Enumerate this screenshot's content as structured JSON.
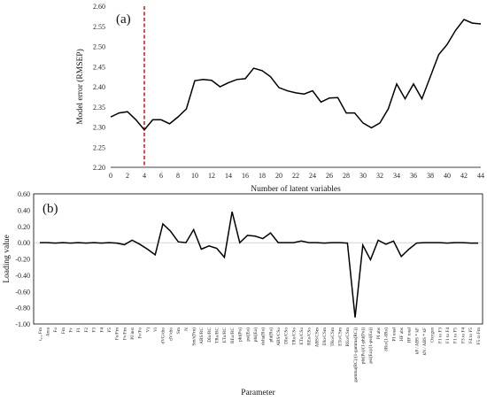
{
  "chart_data": [
    {
      "type": "line",
      "panel_label": "(a)",
      "xlabel": "Number of latent variables",
      "ylabel": "Model error (RMSEP)",
      "xlim": [
        0,
        44
      ],
      "ylim": [
        2.2,
        2.6
      ],
      "x_ticks": [
        0,
        2,
        4,
        6,
        8,
        10,
        12,
        14,
        16,
        18,
        20,
        22,
        24,
        26,
        28,
        30,
        32,
        34,
        36,
        38,
        40,
        42,
        44
      ],
      "y_ticks": [
        2.2,
        2.25,
        2.3,
        2.35,
        2.4,
        2.45,
        2.5,
        2.55,
        2.6
      ],
      "x_tick_labels": [
        "0",
        "2",
        "4",
        "6",
        "8",
        "10",
        "12",
        "14",
        "16",
        "18",
        "20",
        "22",
        "24",
        "26",
        "28",
        "30",
        "32",
        "34",
        "36",
        "38",
        "40",
        "42",
        "44"
      ],
      "y_tick_labels": [
        "2.20",
        "2.25",
        "2.30",
        "2.35",
        "2.40",
        "2.45",
        "2.50",
        "2.55",
        "2.60"
      ],
      "reference_line": {
        "x": 4,
        "color": "#cc0000",
        "style": "dashed"
      },
      "grid": false,
      "line_color": "#000000",
      "x": [
        0,
        1,
        2,
        3,
        4,
        5,
        6,
        7,
        8,
        9,
        10,
        11,
        12,
        13,
        14,
        15,
        16,
        17,
        18,
        19,
        20,
        21,
        22,
        23,
        24,
        25,
        26,
        27,
        28,
        29,
        30,
        31,
        32,
        33,
        34,
        35,
        36,
        37,
        38,
        39,
        40,
        41,
        42,
        43,
        44
      ],
      "y": [
        2.325,
        2.335,
        2.338,
        2.318,
        2.293,
        2.318,
        2.318,
        2.308,
        2.325,
        2.345,
        2.415,
        2.418,
        2.416,
        2.4,
        2.41,
        2.418,
        2.42,
        2.446,
        2.44,
        2.425,
        2.398,
        2.39,
        2.385,
        2.382,
        2.39,
        2.362,
        2.372,
        2.373,
        2.335,
        2.335,
        2.31,
        2.298,
        2.31,
        2.345,
        2.407,
        2.37,
        2.407,
        2.37,
        2.425,
        2.48,
        2.505,
        2.54,
        2.567,
        2.558,
        2.556
      ]
    },
    {
      "type": "line",
      "panel_label": "(b)",
      "xlabel": "Parameter",
      "ylabel": "Loading value",
      "ylim": [
        -1.0,
        0.6
      ],
      "y_ticks": [
        -1.0,
        -0.8,
        -0.6,
        -0.4,
        -0.2,
        0.0,
        0.2,
        0.4,
        0.6
      ],
      "y_tick_labels": [
        "-1.00",
        "-0.80",
        "-0.60",
        "-0.40",
        "-0.20",
        "0.00",
        "0.20",
        "0.40",
        "0.60"
      ],
      "grid": false,
      "line_color": "#000000",
      "categories": [
        "t₀.₂ Fm",
        "Area",
        "Fo",
        "Fm",
        "Fv",
        "F1",
        "F2",
        "F3",
        "F4",
        "F5",
        "Fo/Fm",
        "Fv/Fm",
        "PI inst",
        "Fv/Fo",
        "Vj",
        "Vi",
        "dVG/dto",
        "dV/dto",
        "Sm",
        "N",
        "Sm/t(Fm)",
        "ABS/RC",
        "DIo/RC",
        "TRo/RC",
        "ETo/RC",
        "REo/RC",
        "phi(Po)",
        "psi(Eo)",
        "phi(Eo)",
        "delta(Ro)",
        "phi(Ro)",
        "ABS/CSo",
        "DIo/CSo",
        "TRo/CSo",
        "ETo/CSo",
        "REo/CSo",
        "ABS/CSm",
        "DIo/CSm",
        "TRo/CSm",
        "ETo/CSm",
        "REo/CSm",
        "gamma(RC)/(1-gamma(RC))",
        "phi(Po)/(1-phi(Po))",
        "psi(Eo)/(1-psi(Eo))",
        "PI abs",
        "δRo/(1-δRo)",
        "PI total",
        "HF abs",
        "HF total",
        "kP / ABS * kF",
        "kN / ABS * kF",
        "Oxygen",
        "F1 to F3",
        "F1 to F4",
        "F1 to F5",
        "F3 to F4",
        "F4 to F5",
        "F5 to Fm"
      ],
      "values": [
        0.0,
        0.0,
        -0.005,
        0.0,
        -0.005,
        0.0,
        -0.005,
        0.0,
        -0.005,
        0.0,
        -0.005,
        -0.025,
        0.03,
        -0.02,
        -0.08,
        -0.15,
        0.23,
        0.14,
        0.01,
        0.0,
        0.16,
        -0.08,
        -0.04,
        -0.07,
        -0.18,
        0.38,
        0.0,
        0.09,
        0.08,
        0.05,
        0.12,
        0.0,
        0.0,
        0.0,
        0.02,
        0.0,
        0.0,
        -0.005,
        0.0,
        0.0,
        -0.005,
        -0.92,
        -0.03,
        -0.21,
        0.03,
        -0.02,
        0.02,
        -0.17,
        -0.08,
        -0.005,
        0.0,
        0.0,
        0.0,
        -0.005,
        0.0,
        0.0,
        -0.005,
        -0.005
      ]
    }
  ]
}
